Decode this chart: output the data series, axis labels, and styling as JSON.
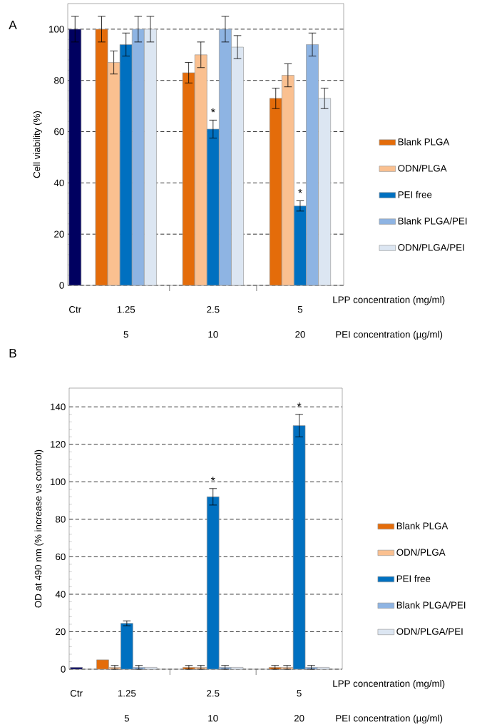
{
  "chart_data": [
    {
      "type": "bar",
      "title": "A",
      "ylabel": "Cell viability (%)",
      "xlabel": "LPP concentration (mg/ml)",
      "categories": [
        "Ctr",
        "1.25",
        "2.5",
        "5"
      ],
      "ylim": [
        0,
        110
      ],
      "yticks": [
        0,
        20,
        40,
        60,
        80,
        100
      ],
      "grid": "y",
      "legend": "right",
      "series": [
        {
          "color": "#000060",
          "values": [
            100,
            null,
            null,
            null
          ],
          "errors": [
            5,
            null,
            null,
            null
          ]
        },
        {
          "name": "Blank PLGA",
          "color": "#e46c0a",
          "values": [
            null,
            100,
            83,
            73
          ],
          "errors": [
            null,
            5,
            4,
            4
          ]
        },
        {
          "name": "ODN/PLGA",
          "color": "#fac090",
          "values": [
            null,
            87,
            90,
            82
          ],
          "errors": [
            null,
            4.5,
            5,
            4.5
          ]
        },
        {
          "name": "PEI free",
          "color": "#0070c0",
          "values": [
            null,
            94,
            61,
            31
          ],
          "errors": [
            null,
            4.5,
            3.5,
            2
          ]
        },
        {
          "name": "Blank PLGA/PEI",
          "color": "#8eb4e3",
          "values": [
            null,
            100,
            100,
            94
          ],
          "errors": [
            null,
            5,
            5,
            4.5
          ]
        },
        {
          "name": "ODN/PLGA/PEI",
          "color": "#dce6f2",
          "values": [
            null,
            100,
            93,
            73
          ],
          "errors": [
            null,
            5,
            4.5,
            4
          ]
        }
      ],
      "annotations": [
        {
          "text": "*",
          "x": "2.5",
          "y": 61
        },
        {
          "text": "*",
          "x": "5",
          "y": 31
        },
        "5",
        "10",
        "20",
        "PEI concentration (µg/ml)"
      ]
    },
    {
      "type": "bar",
      "title": "B",
      "ylabel": "OD at 490 nm (% increase vs control)",
      "xlabel": "LPP concentration (mg/ml)",
      "categories": [
        "Ctr",
        "1.25",
        "2.5",
        "5"
      ],
      "ylim": [
        0,
        150
      ],
      "yticks": [
        0,
        20,
        40,
        60,
        80,
        100,
        120,
        140
      ],
      "grid": "y",
      "legend": "right",
      "series": [
        {
          "color": "#000060",
          "values": [
            1,
            null,
            null,
            null
          ]
        },
        {
          "name": "Blank PLGA",
          "color": "#e46c0a",
          "values": [
            null,
            5,
            1,
            1
          ],
          "errors": [
            null,
            null,
            1,
            1
          ]
        },
        {
          "name": "ODN/PLGA",
          "color": "#fac090",
          "values": [
            null,
            1,
            1,
            1
          ],
          "errors": [
            null,
            1,
            1,
            1
          ]
        },
        {
          "name": "PEI free",
          "color": "#0070c0",
          "values": [
            null,
            24.5,
            92,
            130
          ],
          "errors": [
            null,
            1.3,
            4.4,
            6
          ]
        },
        {
          "name": "Blank PLGA/PEI",
          "color": "#8eb4e3",
          "values": [
            null,
            1,
            1,
            1
          ],
          "errors": [
            null,
            1,
            1,
            1
          ]
        },
        {
          "name": "ODN/PLGA/PEI",
          "color": "#dce6f2",
          "values": [
            null,
            1,
            1,
            1
          ]
        }
      ],
      "annotations": [
        {
          "text": "*",
          "x": "2.5",
          "y": 92
        },
        {
          "text": "*",
          "x": "5",
          "y": 130
        },
        "5",
        "10",
        "20",
        "PEI concentration (µg/ml)"
      ]
    }
  ]
}
